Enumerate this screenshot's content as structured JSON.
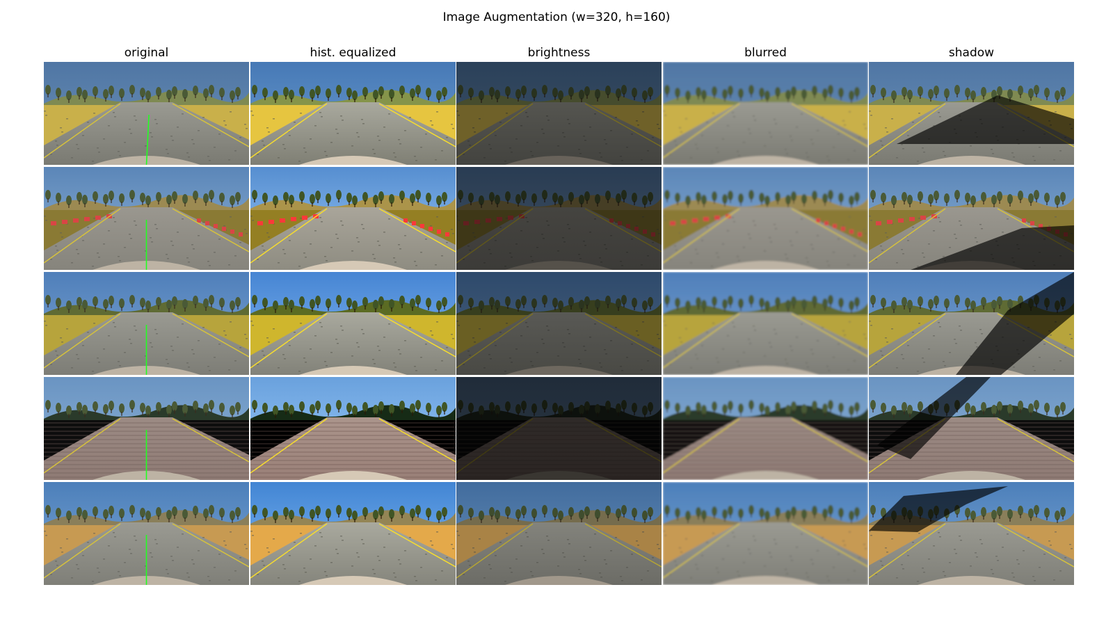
{
  "figure": {
    "title": "Image Augmentation (w=320, h=160)"
  },
  "columns": [
    {
      "key": "original",
      "label": "original"
    },
    {
      "key": "hist",
      "label": "hist. equalized"
    },
    {
      "key": "brightness",
      "label": "brightness"
    },
    {
      "key": "blurred",
      "label": "blurred"
    },
    {
      "key": "shadow",
      "label": "shadow"
    }
  ],
  "rows": [
    {
      "sky": "#6f93b8",
      "sky_top": "#4f76a4",
      "hill": "#7f8a52",
      "roadside": "#c9b04a",
      "road": "#7a7a72",
      "road_far": "#9a9a92",
      "curb": "none",
      "surface": "asphalt",
      "steer": 0.03
    },
    {
      "sky": "#8fb2d6",
      "sky_top": "#5b86b8",
      "hill": "#9c8a52",
      "roadside": "#8a7a34",
      "road": "#86847c",
      "road_far": "#9a978f",
      "curb": "red-white",
      "surface": "asphalt",
      "steer": 0.0
    },
    {
      "sky": "#7fa6d2",
      "sky_top": "#4f7fba",
      "hill": "#5f6b34",
      "roadside": "#b7a43c",
      "road": "#7d7d76",
      "road_far": "#9a9a92",
      "curb": "none",
      "surface": "asphalt",
      "steer": 0.0
    },
    {
      "sky": "#8fb4d8",
      "sky_top": "#6a94c2",
      "hill": "#2a3a2a",
      "roadside": "#0d0d0d",
      "road": "#8e7a74",
      "road_far": "#9c8b84",
      "curb": "none",
      "surface": "brick",
      "steer": 0.0
    },
    {
      "sky": "#7ea9d6",
      "sky_top": "#4c7fba",
      "hill": "#8a7f5a",
      "roadside": "#c79a52",
      "road": "#7f7f78",
      "road_far": "#9a9a92",
      "curb": "none",
      "surface": "asphalt",
      "steer": 0.0
    }
  ],
  "variants": {
    "original": {
      "brightness": 1.0,
      "contrast": 1.0,
      "blur": 0,
      "shadow": false,
      "steer_line": true
    },
    "hist": {
      "brightness": 1.05,
      "contrast": 1.25,
      "blur": 0,
      "shadow": false,
      "steer_line": false
    },
    "brightness": {
      "brightness_by_row": [
        0.55,
        0.45,
        0.58,
        0.3,
        0.85
      ],
      "contrast": 1.0,
      "blur": 0,
      "shadow": false,
      "steer_line": false
    },
    "blurred": {
      "brightness": 1.0,
      "contrast": 1.0,
      "blur": 1.3,
      "shadow": false,
      "steer_line": false
    },
    "shadow": {
      "brightness": 1.0,
      "contrast": 1.0,
      "blur": 0,
      "shadow": true,
      "steer_line": false
    }
  },
  "colors": {
    "steer_line": "#22ff22",
    "shadow": "#000000",
    "hood": "#bdb3a4"
  }
}
